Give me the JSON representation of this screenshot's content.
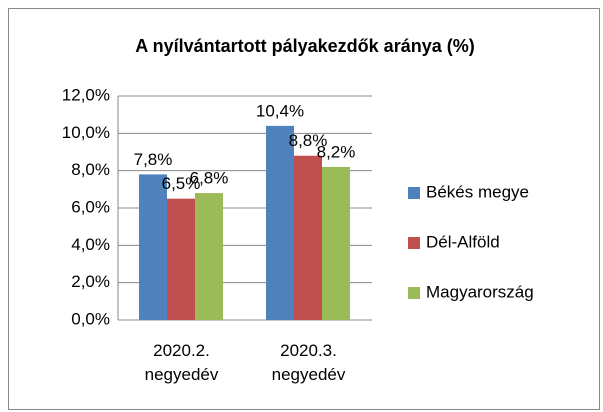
{
  "chart_data": {
    "type": "bar",
    "title": "A nyílvántartott pályakezdők aránya (%)",
    "categories": [
      "2020.2. negyedév",
      "2020.3. negyedév"
    ],
    "series": [
      {
        "name": "Békés megye",
        "color": "#4f81bd",
        "values": [
          7.8,
          10.4
        ],
        "value_labels": [
          "7,8%",
          "10,4%"
        ]
      },
      {
        "name": "Dél-Alföld",
        "color": "#c0504d",
        "values": [
          6.5,
          8.8
        ],
        "value_labels": [
          "6,5%",
          "8,8%"
        ]
      },
      {
        "name": "Magyarország",
        "color": "#9bbb59",
        "values": [
          6.8,
          8.2
        ],
        "value_labels": [
          "6,8%",
          "8,2%"
        ]
      }
    ],
    "ylim": [
      0,
      12
    ],
    "yticks": [
      {
        "value": 0,
        "label": "0,0%"
      },
      {
        "value": 2,
        "label": "2,0%"
      },
      {
        "value": 4,
        "label": "4,0%"
      },
      {
        "value": 6,
        "label": "6,0%"
      },
      {
        "value": 8,
        "label": "8,0%"
      },
      {
        "value": 10,
        "label": "10,0%"
      },
      {
        "value": 12,
        "label": "12,0%"
      }
    ],
    "grid": true,
    "legend": "right"
  }
}
